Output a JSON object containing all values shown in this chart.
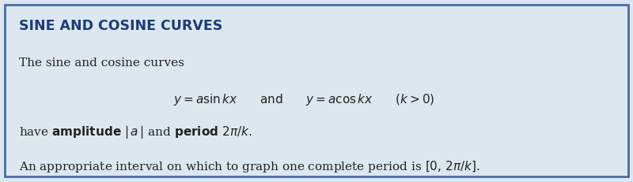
{
  "title": "SINE AND COSINE CURVES",
  "title_color": "#1e3a78",
  "background_color": "#dce8f0",
  "border_color": "#4a6aaa",
  "text_color": "#222222",
  "figsize": [
    8.0,
    2.31
  ],
  "dpi": 100,
  "title_fontsize": 12.5,
  "body_fontsize": 11.0
}
